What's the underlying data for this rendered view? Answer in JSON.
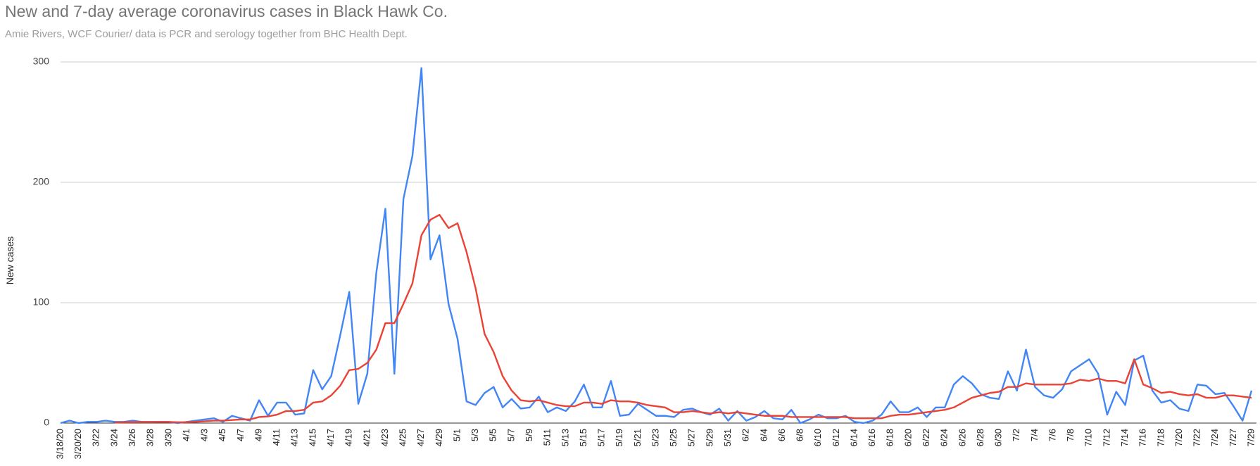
{
  "chart_data": {
    "type": "line",
    "title": "New and 7-day average coronavirus cases in Black Hawk Co.",
    "subtitle": "Amie Rivers, WCF Courier/ data is PCR and serology together from BHC Health Dept.",
    "y_label": "New cases",
    "categories": [
      "3/18/20",
      null,
      "3/20/20",
      null,
      "3/22",
      null,
      "3/24",
      null,
      "3/26",
      null,
      "3/28",
      null,
      "3/30",
      null,
      "4/1",
      null,
      "4/3",
      null,
      "4/5",
      null,
      "4/7",
      null,
      "4/9",
      null,
      "4/11",
      null,
      "4/13",
      null,
      "4/15",
      null,
      "4/17",
      null,
      "4/19",
      null,
      "4/21",
      null,
      "4/23",
      null,
      "4/25",
      null,
      "4/27",
      null,
      "4/29",
      null,
      "5/1",
      null,
      "5/3",
      null,
      "5/5",
      null,
      "5/7",
      null,
      "5/9",
      null,
      "5/11",
      null,
      "5/13",
      null,
      "5/15",
      null,
      "5/17",
      null,
      "5/19",
      null,
      "5/21",
      null,
      "5/23",
      null,
      "5/25",
      null,
      "5/27",
      null,
      "5/29",
      null,
      "5/31",
      null,
      "6/2",
      null,
      "6/4",
      null,
      "6/6",
      null,
      "6/8",
      null,
      "6/10",
      null,
      "6/12",
      null,
      "6/14",
      null,
      "6/16",
      null,
      "6/18",
      null,
      "6/20",
      null,
      "6/22",
      null,
      "6/24",
      null,
      "6/26",
      null,
      "6/28",
      null,
      "6/30",
      null,
      "7/2",
      null,
      "7/4",
      null,
      "7/6",
      null,
      "7/8",
      null,
      "7/10",
      null,
      "7/12",
      null,
      "7/14",
      null,
      "7/16",
      null,
      "7/18",
      null,
      "7/20",
      null,
      "7/22",
      null,
      "7/24",
      null,
      "7/27",
      null,
      "7/29"
    ],
    "series": [
      {
        "color": "#4285f4",
        "values": [
          0,
          2,
          0,
          1,
          1,
          2,
          1,
          1,
          2,
          1,
          1,
          1,
          1,
          0,
          1,
          2,
          3,
          4,
          1,
          6,
          4,
          2,
          19,
          6,
          17,
          17,
          7,
          8,
          44,
          28,
          39,
          73,
          109,
          16,
          41,
          125,
          178,
          41,
          186,
          222,
          295,
          136,
          156,
          99,
          70,
          18,
          15,
          25,
          30,
          13,
          20,
          12,
          13,
          22,
          9,
          13,
          10,
          18,
          32,
          13,
          13,
          35,
          6,
          7,
          16,
          11,
          6,
          6,
          5,
          11,
          12,
          9,
          7,
          12,
          2,
          10,
          2,
          5,
          10,
          4,
          3,
          11,
          0,
          3,
          7,
          4,
          4,
          6,
          1,
          0,
          2,
          7,
          18,
          9,
          9,
          13,
          5,
          13,
          13,
          32,
          39,
          33,
          24,
          21,
          20,
          43,
          27,
          61,
          30,
          23,
          21,
          28,
          43,
          48,
          53,
          41,
          7,
          26,
          15,
          52,
          56,
          27,
          17,
          19,
          12,
          10,
          32,
          31,
          24,
          25,
          14,
          2,
          27
        ]
      },
      {
        "color": "#ea4335",
        "values": [
          null,
          null,
          null,
          null,
          null,
          null,
          0.5,
          0.6,
          0.7,
          0.8,
          0.8,
          0.9,
          0.9,
          0.7,
          0.7,
          1,
          1.5,
          2,
          2,
          2.5,
          3,
          3,
          5,
          5.5,
          7,
          10,
          10,
          11,
          17,
          18,
          23,
          31,
          44,
          45,
          50,
          61,
          83,
          83,
          99,
          116,
          156,
          169,
          173,
          162,
          166,
          142,
          112,
          74,
          59,
          39,
          27,
          19,
          18,
          19,
          17,
          15,
          14,
          14,
          17,
          17,
          16,
          19,
          18,
          18,
          17,
          15,
          14,
          13,
          9,
          9,
          10,
          9,
          8,
          9,
          8,
          9,
          8,
          7,
          6,
          6,
          6,
          5,
          5,
          5,
          5,
          5,
          5,
          5,
          4,
          4,
          4,
          4,
          6,
          7,
          7,
          8,
          9,
          10,
          11,
          13,
          17,
          21,
          23,
          25,
          26,
          30,
          30,
          33,
          32,
          32,
          32,
          32,
          33,
          36,
          35,
          37,
          35,
          35,
          33,
          53,
          32,
          29,
          25,
          26,
          24,
          23,
          24,
          21,
          21,
          23,
          23,
          22,
          21
        ]
      }
    ],
    "ylim": [
      0,
      300
    ],
    "yticks": [
      0,
      100,
      200,
      300
    ],
    "grid": true
  }
}
